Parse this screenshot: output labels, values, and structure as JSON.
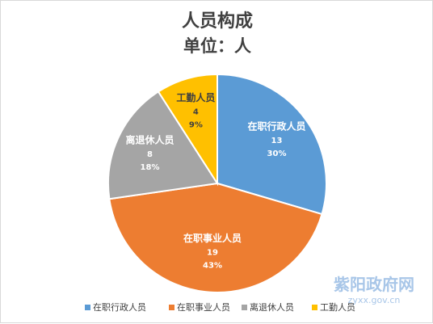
{
  "chart_data": {
    "type": "pie",
    "title": "人员构成",
    "subtitle": "单位：人",
    "categories": [
      "在职行政人员",
      "在职事业人员",
      "离退休人员",
      "工勤人员"
    ],
    "values": [
      13,
      19,
      8,
      4
    ],
    "percent_labels": [
      "30%",
      "43%",
      "18%",
      "9%"
    ],
    "colors": [
      "#5b9bd5",
      "#ed7d31",
      "#a5a5a5",
      "#ffc000"
    ],
    "label_colors": [
      "#ffffff",
      "#ffffff",
      "#ffffff",
      "#404040"
    ],
    "legend": {
      "position": "bottom",
      "entries": [
        "在职行政人员",
        "在职事业人员",
        "离退休人员",
        "工勤人员"
      ]
    }
  },
  "watermark": {
    "site_name": "紫阳政府网",
    "domain": "zyxx.gov.cn",
    "color": "#a8c6e8"
  }
}
